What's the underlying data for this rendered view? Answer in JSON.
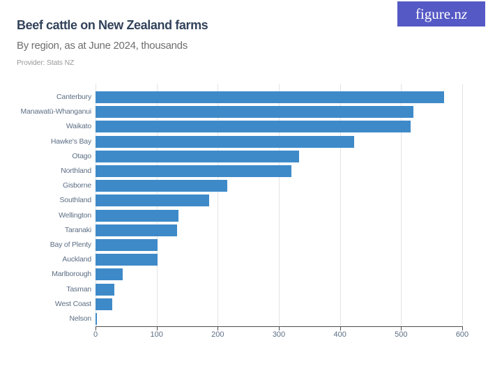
{
  "header": {
    "title": "Beef cattle on New Zealand farms",
    "subtitle": "By region, as at June 2024, thousands",
    "provider": "Provider: Stats NZ",
    "logo_prefix": "figure.n",
    "logo_suffix": "z"
  },
  "colors": {
    "bar": "#3e8ac9",
    "logo_bg": "#5559c5",
    "title": "#32425a",
    "subtitle": "#6e6e6e",
    "provider": "#999999",
    "axis_text": "#5c6e84",
    "grid": "#e4e4e4",
    "axis_line": "#4d4d4d"
  },
  "chart_data": {
    "type": "bar",
    "orientation": "horizontal",
    "title": "Beef cattle on New Zealand farms",
    "subtitle": "By region, as at June 2024, thousands",
    "provider": "Stats NZ",
    "unit": "thousands",
    "categories": [
      "Canterbury",
      "Manawatū-Whanganui",
      "Waikato",
      "Hawke's Bay",
      "Otago",
      "Northland",
      "Gisborne",
      "Southland",
      "Wellington",
      "Taranaki",
      "Bay of Plenty",
      "Auckland",
      "Marlborough",
      "Tasman",
      "West Coast",
      "Nelson"
    ],
    "values": [
      570,
      520,
      516,
      423,
      333,
      321,
      216,
      186,
      136,
      134,
      102,
      101,
      44,
      31,
      27,
      1.5
    ],
    "xlim": [
      0,
      600
    ],
    "x_ticks": [
      0,
      100,
      200,
      300,
      400,
      500,
      600
    ],
    "x_tick_labels": [
      "0",
      "100",
      "200",
      "300",
      "400",
      "500",
      "600"
    ],
    "grid": true,
    "legend": false
  }
}
